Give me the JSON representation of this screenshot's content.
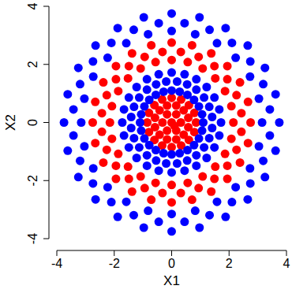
{
  "chart_data": {
    "type": "scatter",
    "x_label": "X1",
    "y_label": "X2",
    "xlim": [
      -4,
      4
    ],
    "ylim": [
      -4,
      4
    ],
    "xticks": [
      -4,
      -2,
      0,
      2,
      4
    ],
    "yticks": [
      -4,
      -2,
      0,
      2,
      4
    ],
    "grid": false,
    "marker": "circle",
    "series": [
      {
        "color": "#ff0000",
        "x": [
          0,
          0.1,
          0.32,
          0.16,
          -0.16,
          -0.32,
          -0.16,
          0.16,
          0.58,
          0.42,
          0.16,
          -0.16,
          -0.42,
          -0.58,
          -0.58,
          -0.42,
          -0.16,
          0.16,
          0.42,
          0.58,
          0.85,
          0.79,
          0.6,
          0.33,
          0,
          -0.33,
          -0.6,
          -0.79,
          -0.85,
          -0.79,
          -0.6,
          -0.33,
          0,
          0.33,
          0.6,
          0.79,
          2.15,
          2.08,
          1.86,
          1.52,
          1.08,
          0.56,
          0,
          -0.56,
          -1.08,
          -1.52,
          -1.86,
          -2.08,
          -2.15,
          -2.08,
          -1.86,
          -1.52,
          -1.08,
          -0.56,
          0,
          0.56,
          1.08,
          1.52,
          1.86,
          2.08,
          2.43,
          2.26,
          1.94,
          1.49,
          0.94,
          0.32,
          -0.32,
          -0.94,
          -1.49,
          -1.94,
          -2.26,
          -2.43,
          -2.43,
          -2.26,
          -1.94,
          -1.49,
          -0.94,
          -0.32,
          0.32,
          0.94,
          1.49,
          1.94,
          2.26,
          2.43,
          2.75,
          2.66,
          2.38,
          1.94,
          1.38,
          0.71,
          0,
          -0.71,
          -1.38,
          -1.94,
          -2.38,
          -2.66,
          -2.75,
          -2.66,
          -2.38,
          -1.94,
          -1.38,
          -0.71,
          0,
          0.71,
          1.38,
          1.94,
          2.38,
          2.66
        ],
        "y": [
          0,
          -0.12,
          0,
          0.28,
          0.28,
          0,
          -0.28,
          -0.28,
          0.16,
          0.42,
          0.58,
          0.58,
          0.42,
          0.16,
          -0.16,
          -0.42,
          -0.58,
          -0.58,
          -0.42,
          -0.16,
          0,
          0.33,
          0.6,
          0.79,
          0.85,
          0.79,
          0.6,
          0.33,
          0,
          -0.33,
          -0.6,
          -0.79,
          -0.85,
          -0.79,
          -0.6,
          -0.33,
          0,
          0.56,
          1.08,
          1.52,
          1.86,
          2.08,
          2.15,
          2.08,
          1.86,
          1.52,
          1.08,
          0.56,
          0,
          -0.56,
          -1.08,
          -1.52,
          -1.86,
          -2.08,
          -2.15,
          -2.08,
          -1.86,
          -1.52,
          -1.08,
          -0.56,
          0.32,
          0.94,
          1.49,
          1.94,
          2.26,
          2.43,
          2.43,
          2.26,
          1.94,
          1.49,
          0.94,
          0.32,
          -0.32,
          -0.94,
          -1.49,
          -1.94,
          -2.26,
          -2.43,
          -2.43,
          -2.26,
          -1.94,
          -1.49,
          -0.94,
          -0.32,
          0,
          0.71,
          1.38,
          1.94,
          2.38,
          2.66,
          2.75,
          2.66,
          2.38,
          1.94,
          1.38,
          0.71,
          0,
          -0.71,
          -1.38,
          -1.94,
          -2.38,
          -2.66,
          -2.75,
          -2.66,
          -2.38,
          -1.94,
          -1.38,
          -0.71
        ]
      },
      {
        "color": "#0000ff",
        "x": [
          1.1,
          1.06,
          0.95,
          0.78,
          0.55,
          0.28,
          0,
          -0.28,
          -0.55,
          -0.78,
          -0.95,
          -1.06,
          -1.1,
          -1.06,
          -0.95,
          -0.78,
          -0.55,
          -0.28,
          0,
          0.28,
          0.55,
          0.78,
          0.95,
          1.06,
          1.41,
          1.31,
          1.13,
          0.86,
          0.54,
          0.19,
          -0.19,
          -0.54,
          -0.86,
          -1.13,
          -1.31,
          -1.41,
          -1.41,
          -1.31,
          -1.13,
          -0.86,
          -0.54,
          -0.19,
          0.19,
          0.54,
          0.86,
          1.13,
          1.31,
          1.41,
          1.72,
          1.66,
          1.49,
          1.22,
          0.86,
          0.45,
          0,
          -0.45,
          -0.86,
          -1.22,
          -1.49,
          -1.66,
          -1.72,
          -1.66,
          -1.49,
          -1.22,
          -0.86,
          -0.45,
          0,
          0.45,
          0.86,
          1.22,
          1.49,
          1.66,
          3.15,
          3.04,
          2.73,
          2.23,
          1.58,
          0.82,
          0,
          -0.82,
          -1.58,
          -2.23,
          -2.73,
          -3.04,
          -3.15,
          -3.04,
          -2.73,
          -2.23,
          -1.58,
          -0.82,
          0,
          0.82,
          1.58,
          2.23,
          2.73,
          3.04,
          3.42,
          3.19,
          2.74,
          2.1,
          1.32,
          0.45,
          -0.45,
          -1.32,
          -2.1,
          -2.74,
          -3.19,
          -3.42,
          -3.42,
          -3.19,
          -2.74,
          -2.1,
          -1.32,
          -0.45,
          0.45,
          1.32,
          2.1,
          2.74,
          3.19,
          3.42,
          3.75,
          3.62,
          3.25,
          2.65,
          1.88,
          0.97,
          0,
          -0.97,
          -1.88,
          -2.65,
          -3.25,
          -3.62,
          -3.75,
          -3.62,
          -3.25,
          -2.65,
          -1.88,
          -0.97,
          0,
          0.97,
          1.88,
          2.65,
          3.25,
          3.62
        ],
        "y": [
          0,
          0.28,
          0.55,
          0.78,
          0.95,
          1.06,
          1.1,
          1.06,
          0.95,
          0.78,
          0.55,
          0.28,
          0,
          -0.28,
          -0.55,
          -0.78,
          -0.95,
          -1.06,
          -1.1,
          -1.06,
          -0.95,
          -0.78,
          -0.55,
          -0.28,
          0.19,
          0.54,
          0.86,
          1.13,
          1.31,
          1.41,
          1.41,
          1.31,
          1.13,
          0.86,
          0.54,
          0.19,
          -0.19,
          -0.54,
          -0.86,
          -1.13,
          -1.31,
          -1.41,
          -1.41,
          -1.31,
          -1.13,
          -0.86,
          -0.54,
          -0.19,
          0,
          0.45,
          0.86,
          1.22,
          1.49,
          1.66,
          1.72,
          1.66,
          1.49,
          1.22,
          0.86,
          0.45,
          0,
          -0.45,
          -0.86,
          -1.22,
          -1.49,
          -1.66,
          -1.72,
          -1.66,
          -1.49,
          -1.22,
          -0.86,
          -0.45,
          0,
          0.82,
          1.58,
          2.23,
          2.73,
          3.04,
          3.15,
          3.04,
          2.73,
          2.23,
          1.58,
          0.82,
          0,
          -0.82,
          -1.58,
          -2.23,
          -2.73,
          -3.04,
          -3.15,
          -3.04,
          -2.73,
          -2.23,
          -1.58,
          -0.82,
          0.45,
          1.32,
          2.1,
          2.74,
          3.19,
          3.42,
          3.42,
          3.19,
          2.74,
          2.1,
          1.32,
          0.45,
          -0.45,
          -1.32,
          -2.1,
          -2.74,
          -3.19,
          -3.42,
          -3.42,
          -3.19,
          -2.74,
          -2.1,
          -1.32,
          -0.45,
          0,
          0.97,
          1.88,
          2.65,
          3.25,
          3.62,
          3.75,
          3.62,
          3.25,
          2.65,
          1.88,
          0.97,
          0,
          -0.97,
          -1.88,
          -2.65,
          -3.25,
          -3.62,
          -3.75,
          -3.62,
          -3.25,
          -2.65,
          -1.88,
          -0.97
        ]
      }
    ]
  }
}
